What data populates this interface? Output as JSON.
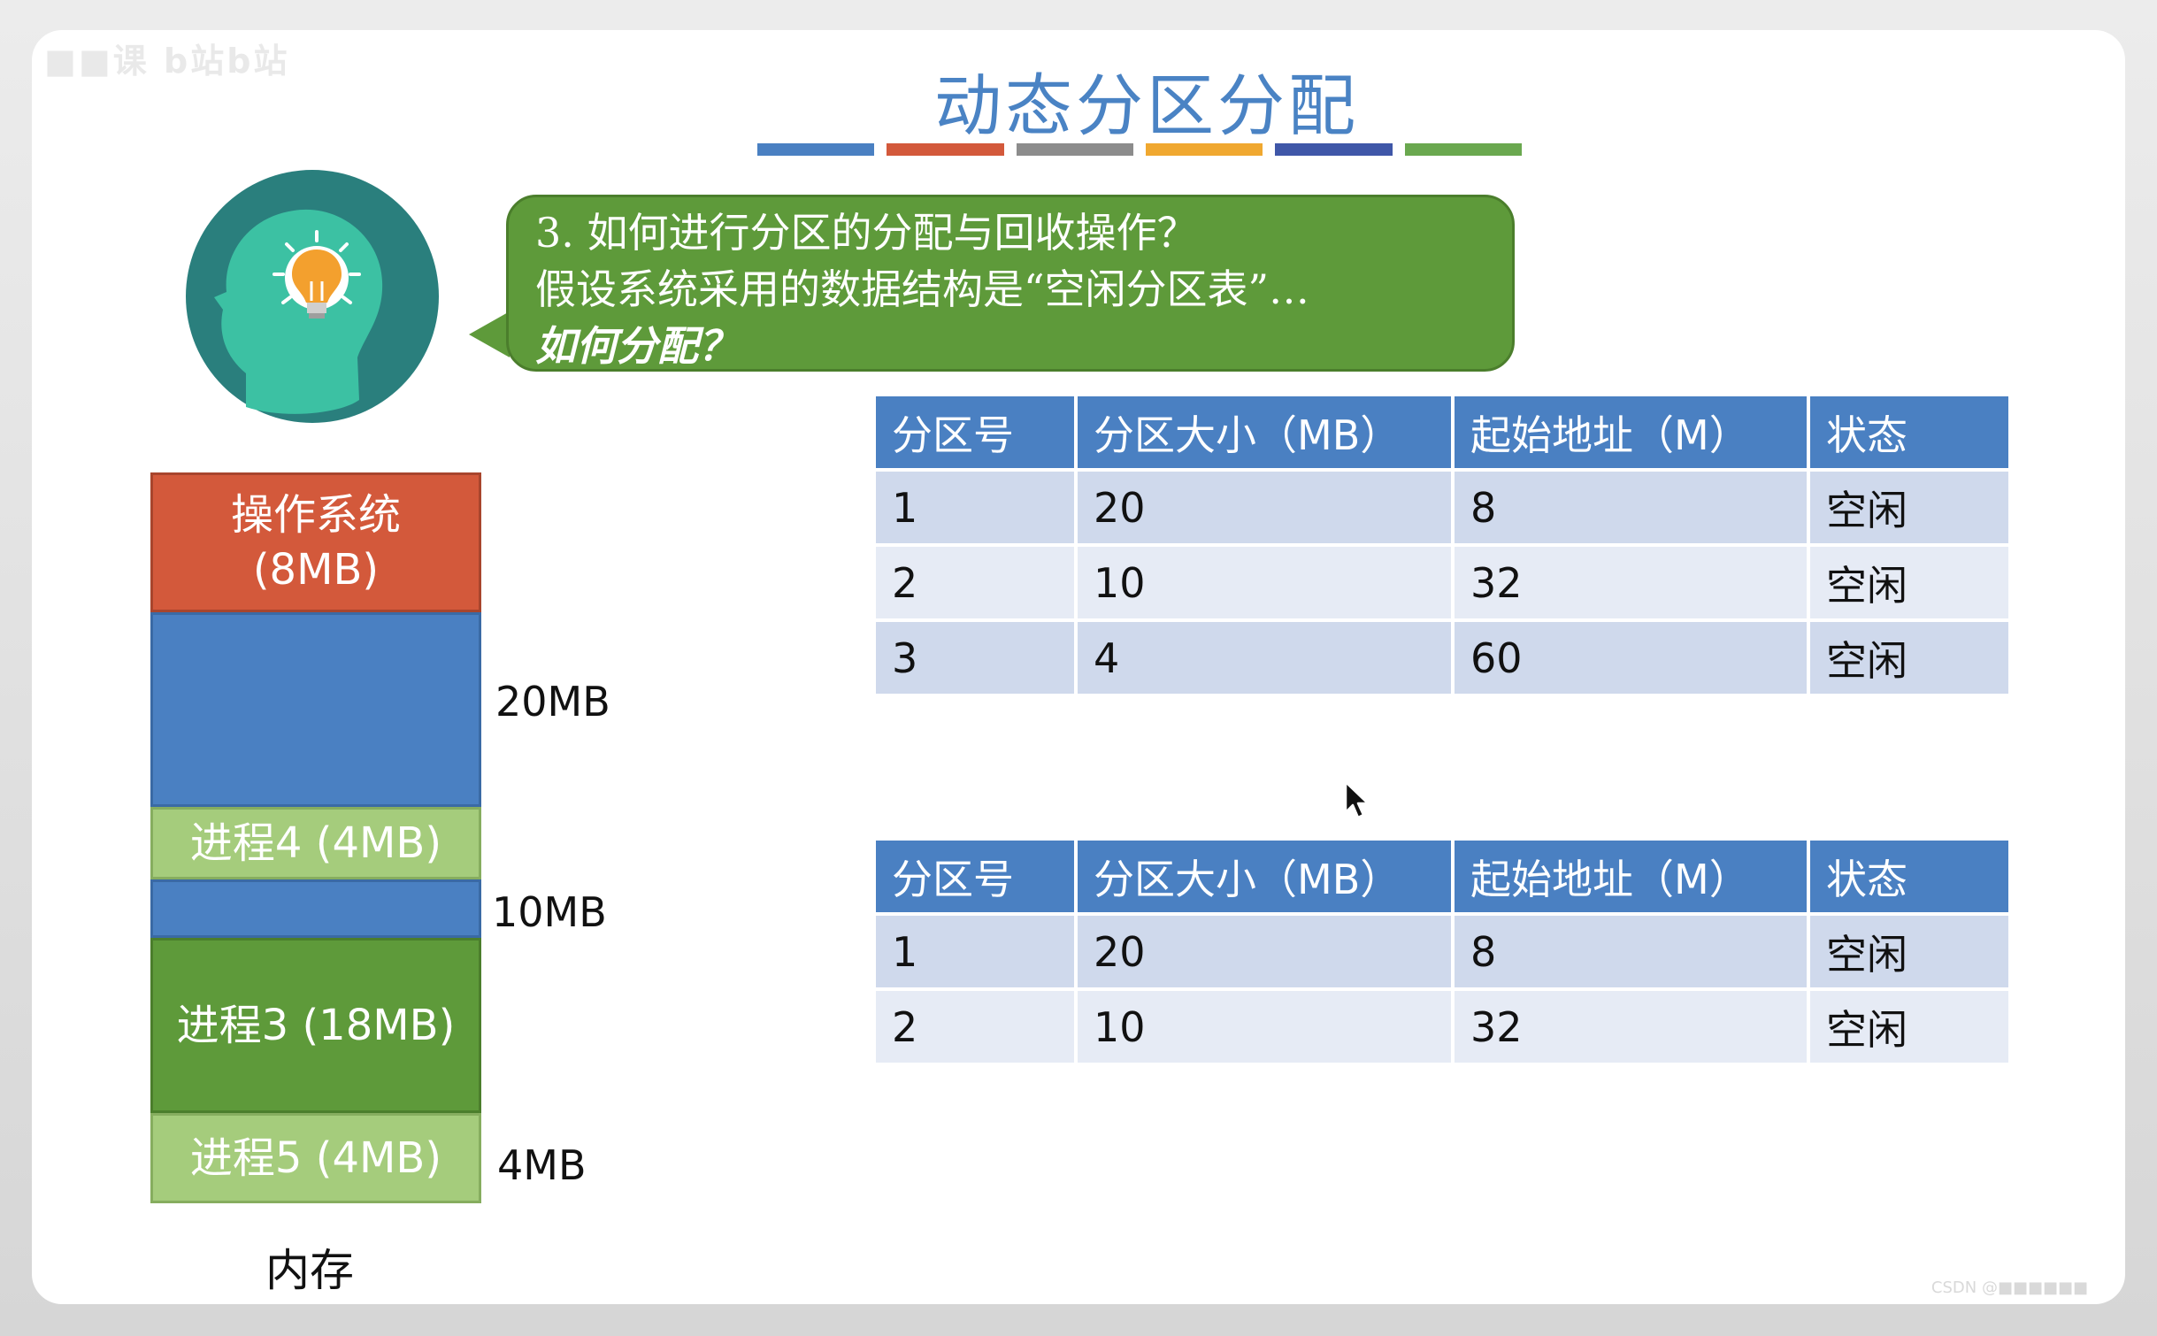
{
  "slide": {
    "watermark": "■■课 b站b站",
    "title": "动态分区分配",
    "title_bar_colors": [
      "#4a80c2",
      "#d3593b",
      "#8c8c8c",
      "#f0a830",
      "#3f57a8",
      "#6aa84f"
    ]
  },
  "bubble": {
    "line1": "3. 如何进行分区的分配与回收操作？",
    "line2": "假设系统采用的数据结构是“空闲分区表”…",
    "line3": "如何分配？"
  },
  "memory": {
    "os_block": "操作系统\n(8MB)",
    "proc4": "进程4 (4MB)",
    "proc3": "进程3 (18MB)",
    "proc5": "进程5 (4MB)",
    "size_20": "20MB",
    "size_10": "10MB",
    "size_4": "4MB",
    "caption": "内存"
  },
  "table_before": {
    "headers": [
      "分区号",
      "分区大小（MB）",
      "起始地址（M）",
      "状态"
    ],
    "rows": [
      [
        "1",
        "20",
        "8",
        "空闲"
      ],
      [
        "2",
        "10",
        "32",
        "空闲"
      ],
      [
        "3",
        "4",
        "60",
        "空闲"
      ]
    ]
  },
  "table_after": {
    "headers": [
      "分区号",
      "分区大小（MB）",
      "起始地址（M）",
      "状态"
    ],
    "rows": [
      [
        "1",
        "20",
        "8",
        "空闲"
      ],
      [
        "2",
        "10",
        "32",
        "空闲"
      ]
    ]
  },
  "footer": {
    "corner_text": "CSDN @■■■■■■"
  },
  "icons": {
    "thinker": "head-lightbulb-icon",
    "cursor": "mouse-pointer-icon"
  }
}
